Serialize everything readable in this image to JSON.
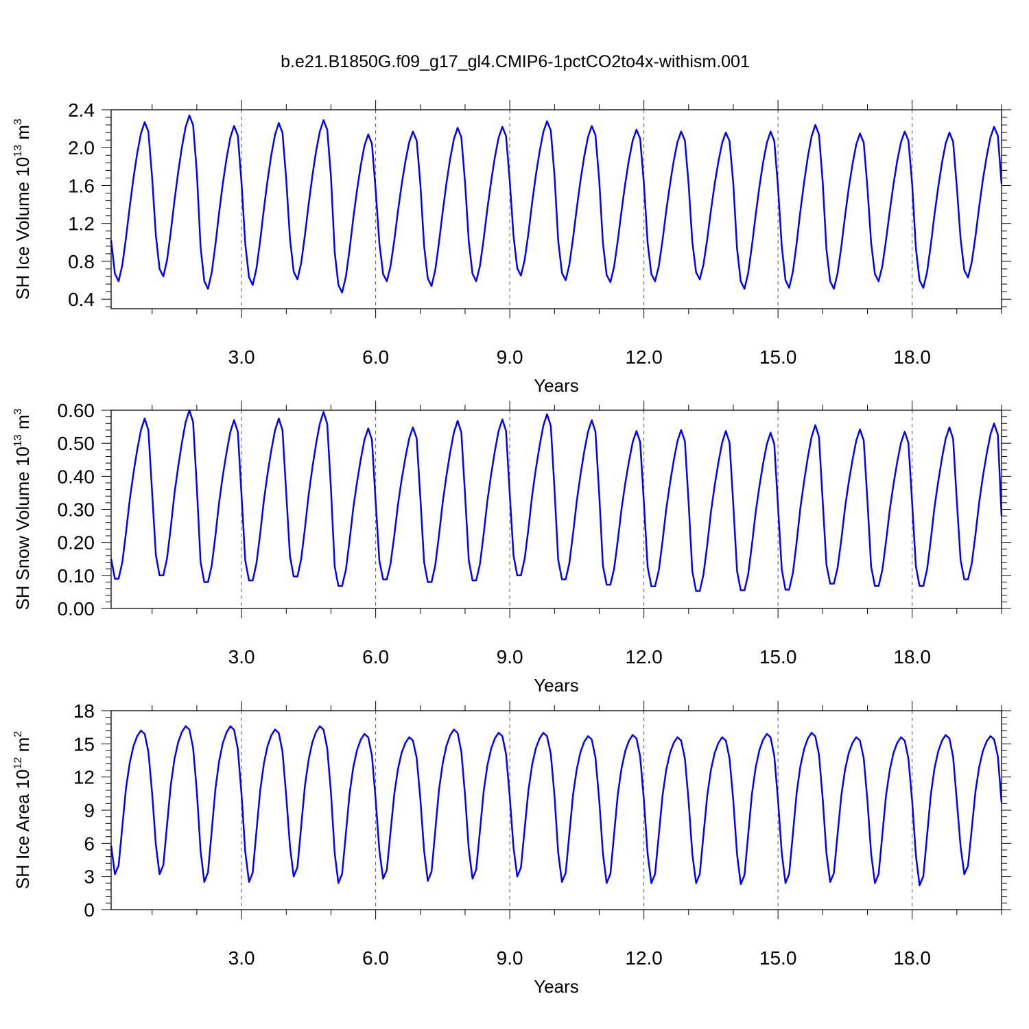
{
  "title": "b.e21.B1850G.f09_g17_gl4.CMIP6-1pctCO2to4x-withism.001",
  "colors": {
    "series": "#0000ff",
    "axis": "#000000",
    "grid": "#555555"
  },
  "chart_data": [
    {
      "type": "line",
      "ylabel_prefix": "SH Ice Volume 10",
      "ylabel_exponent": "13",
      "ylabel_unit": " m",
      "ylabel_unit_exponent": "3",
      "xlabel": "Years",
      "xlim": [
        0.083,
        20.0
      ],
      "ylim": [
        0.3,
        2.4
      ],
      "xticks": [
        3,
        6,
        9,
        12,
        15,
        18
      ],
      "xtick_labels": [
        "3.0",
        "6.0",
        "9.0",
        "12.0",
        "15.0",
        "18.0"
      ],
      "yticks": [
        0.4,
        0.8,
        1.2,
        1.6,
        2.0,
        2.4
      ],
      "ytick_labels": [
        "0.4",
        "0.8",
        "1.2",
        "1.6",
        "2.0",
        "2.4"
      ],
      "seasonal_shape": [
        1.02,
        0.67,
        0.59,
        0.76,
        1.05,
        1.38,
        1.68,
        1.94,
        2.15,
        2.27,
        2.17,
        1.68
      ],
      "yearly_min": [
        0.59,
        0.64,
        0.51,
        0.55,
        0.61,
        0.47,
        0.59,
        0.54,
        0.59,
        0.65,
        0.6,
        0.58,
        0.59,
        0.61,
        0.51,
        0.52,
        0.51,
        0.59,
        0.52,
        0.63
      ],
      "yearly_max": [
        2.27,
        2.34,
        2.23,
        2.26,
        2.29,
        2.14,
        2.17,
        2.21,
        2.22,
        2.28,
        2.23,
        2.19,
        2.17,
        2.16,
        2.17,
        2.24,
        2.15,
        2.17,
        2.16,
        2.22
      ],
      "final_value": 1.62
    },
    {
      "type": "line",
      "ylabel_prefix": "SH Snow Volume 10",
      "ylabel_exponent": "13",
      "ylabel_unit": " m",
      "ylabel_unit_exponent": "3",
      "xlabel": "Years",
      "xlim": [
        0.083,
        20.0
      ],
      "ylim": [
        0.0,
        0.6
      ],
      "xticks": [
        3,
        6,
        9,
        12,
        15,
        18
      ],
      "xtick_labels": [
        "3.0",
        "6.0",
        "9.0",
        "12.0",
        "15.0",
        "18.0"
      ],
      "yticks": [
        0.0,
        0.1,
        0.2,
        0.3,
        0.4,
        0.5,
        0.6
      ],
      "ytick_labels": [
        "0.00",
        "0.10",
        "0.20",
        "0.30",
        "0.40",
        "0.50",
        "0.60"
      ],
      "seasonal_shape": [
        0.15,
        0.09,
        0.09,
        0.14,
        0.23,
        0.33,
        0.41,
        0.48,
        0.54,
        0.575,
        0.54,
        0.35
      ],
      "yearly_min": [
        0.09,
        0.1,
        0.08,
        0.085,
        0.097,
        0.068,
        0.088,
        0.08,
        0.085,
        0.1,
        0.088,
        0.072,
        0.067,
        0.053,
        0.055,
        0.057,
        0.075,
        0.068,
        0.068,
        0.088
      ],
      "yearly_max": [
        0.575,
        0.6,
        0.57,
        0.575,
        0.595,
        0.545,
        0.548,
        0.568,
        0.572,
        0.588,
        0.57,
        0.537,
        0.54,
        0.537,
        0.532,
        0.555,
        0.542,
        0.535,
        0.548,
        0.56
      ],
      "final_value": 0.28
    },
    {
      "type": "line",
      "ylabel_prefix": "SH Ice Area 10",
      "ylabel_exponent": "12",
      "ylabel_unit": " m",
      "ylabel_unit_exponent": "2",
      "xlabel": "Years",
      "xlim": [
        0.083,
        20.0
      ],
      "ylim": [
        0,
        18
      ],
      "xticks": [
        3,
        6,
        9,
        12,
        15,
        18
      ],
      "xtick_labels": [
        "3.0",
        "6.0",
        "9.0",
        "12.0",
        "15.0",
        "18.0"
      ],
      "yticks": [
        0,
        3,
        6,
        9,
        12,
        15,
        18
      ],
      "ytick_labels": [
        "0",
        "3",
        "6",
        "9",
        "12",
        "15",
        "18"
      ],
      "seasonal_shape": [
        5.8,
        3.2,
        4.0,
        7.5,
        11.0,
        13.3,
        14.8,
        15.7,
        16.2,
        15.9,
        14.3,
        10.5
      ],
      "yearly_min": [
        3.2,
        3.2,
        2.5,
        2.5,
        3.0,
        2.4,
        2.8,
        2.6,
        2.8,
        3.0,
        2.5,
        2.4,
        2.4,
        2.4,
        2.3,
        2.4,
        2.5,
        2.4,
        2.2,
        3.2
      ],
      "yearly_max": [
        16.2,
        16.6,
        16.6,
        16.3,
        16.6,
        15.9,
        15.6,
        16.3,
        16.0,
        16.0,
        15.7,
        15.8,
        15.6,
        15.6,
        15.9,
        16.0,
        15.6,
        15.6,
        15.8,
        15.7
      ],
      "final_value": 9.7
    }
  ]
}
